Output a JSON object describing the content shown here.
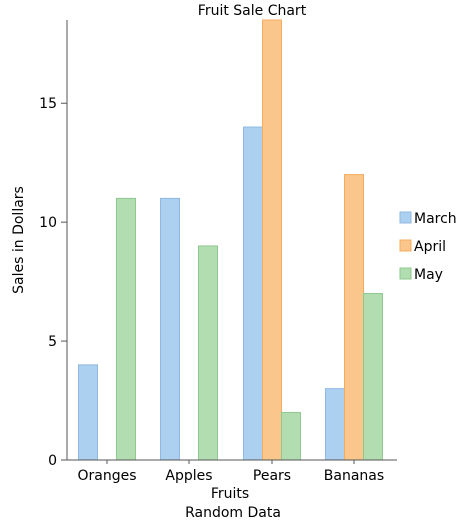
{
  "chart_data": {
    "type": "bar",
    "title": "Fruit Sale Chart",
    "xlabel": "Fruits",
    "ylabel": "Sales in Dollars",
    "footer": "Random Data",
    "categories": [
      "Oranges",
      "Apples",
      "Pears",
      "Bananas"
    ],
    "series": [
      {
        "name": "March",
        "values": [
          4,
          11,
          14,
          3
        ],
        "color": "#acd0ef",
        "stroke": "#8fb9e2"
      },
      {
        "name": "April",
        "values": [
          0,
          0,
          19,
          12
        ],
        "color": "#fbc68b",
        "stroke": "#f3ac5e"
      },
      {
        "name": "May",
        "values": [
          11,
          9,
          2,
          7
        ],
        "color": "#b1ddb1",
        "stroke": "#8fc98f"
      }
    ],
    "ylim": [
      0,
      18.5
    ],
    "yticks": [
      0,
      5,
      10,
      15
    ],
    "grid": false,
    "legend_position": "right"
  }
}
